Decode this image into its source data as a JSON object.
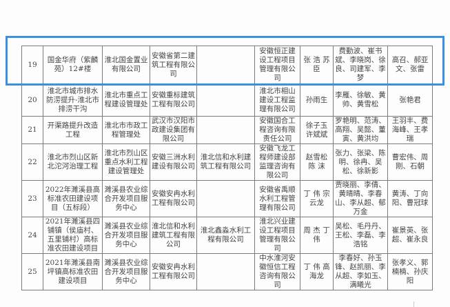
{
  "rows": [
    {
      "no": "19",
      "project": "国金华府（紫麟苑）12#楼",
      "owner": "淮北国金置业有限公司",
      "contractor": "安徽省第二建筑工程有限公司",
      "sub": "",
      "supervisor": "安徽恒正建设工程项目管理有限公司",
      "manager": "张 浩 苏 臣",
      "staff": "费勤波、崔书斌、李晓岗、徐良、司建军、李梦",
      "others": "高召、郝亚文、张雷"
    },
    {
      "no": "20",
      "project": "淮北市城市排水防涝提升-淮北市排涝干沟",
      "owner": "淮北市重点工程建设管理处",
      "contractor": "安徽重标建筑工程有限公司",
      "sub": "",
      "supervisor": "淮北市相山建设工程监理有限公司",
      "manager": "孙雨生",
      "staff": "李雁、徐敏、黄帅、黄雪松",
      "others": "张艳君"
    },
    {
      "no": "21",
      "project": "开渠路提升改造工程",
      "owner": "淮北市市政工程管理处",
      "contractor": "武汉市汉阳市政建设集团有限公司",
      "sub": "",
      "supervisor": "安徽国合工程咨询有限责任公司",
      "manager": "徐子玉 许斌斌",
      "staff": "罗艳明、范涛、高翔、吴懿、董寅、黄洪均",
      "others": "王羽丰、费海峰、王孝瑞"
    },
    {
      "no": "22",
      "project": "淮北市烈山区新北沱河治理工程",
      "owner": "淮北市烈山区重点水利工程建设管理处",
      "contractor": "安徽三洲水利建设有限公司",
      "sub": "淮北信和水利建筑工程有限公司",
      "supervisor": "安徽飞龙工程师建设部监理咨询有限公司",
      "manager": "赵雪松 陈 沫",
      "staff": "张力、张梁、陈明、徐冉、吴松、徐新影",
      "others": "曹宏伟、周刚、石朝"
    },
    {
      "no": "23",
      "project": "2022年濉溪县高标准农田建设项目（五标段）",
      "owner": "濉溪县农业综合开发项目服务中心",
      "contractor": "安徽安冉水利工程有限公司",
      "sub": "",
      "supervisor": "安徽省禹顺水利工程管理有限公司",
      "manager": "丁 伟 宗云龙",
      "staff": "贾晓丽、李倩、黄晴晴、李春山、李从超、郁万金",
      "others": "黄涛、丁向阳、曹冠球"
    },
    {
      "no": "24",
      "project": "2021年濉溪县四铺镇（侯庙村、五里铺村）高标准农田建设项目",
      "owner": "濉溪县农业综合开发项目服务中心",
      "contractor": "淮北信和水利建筑工程有限公司",
      "sub": "淮北鑫淼水利工程有限公司",
      "supervisor": "淮北兴业建设工程项目管理有限公司",
      "manager": "周 杰 丁 伟",
      "staff": "吴松、毛丹丹、王松、李磊、李浩铭",
      "others": "崔景英、张超、崔永良"
    },
    {
      "no": "25",
      "project": "2021年濉溪县南坪镇高标准农田建设项目",
      "owner": "濉溪县农业综合开发项目服务中心",
      "contractor": "安徽安冉水利工程有限公司",
      "sub": "",
      "supervisor": "中水淮河安徽恒信工程咨询有限公司",
      "manager": "丁 伟 高海龙",
      "staff": "李春好、孙玉锋、赵凯丽、李从超、李如玉、满曦光",
      "others": "张孝义、郭楠楠、孙庆阳"
    }
  ],
  "highlight_color": "#3b8fe0"
}
